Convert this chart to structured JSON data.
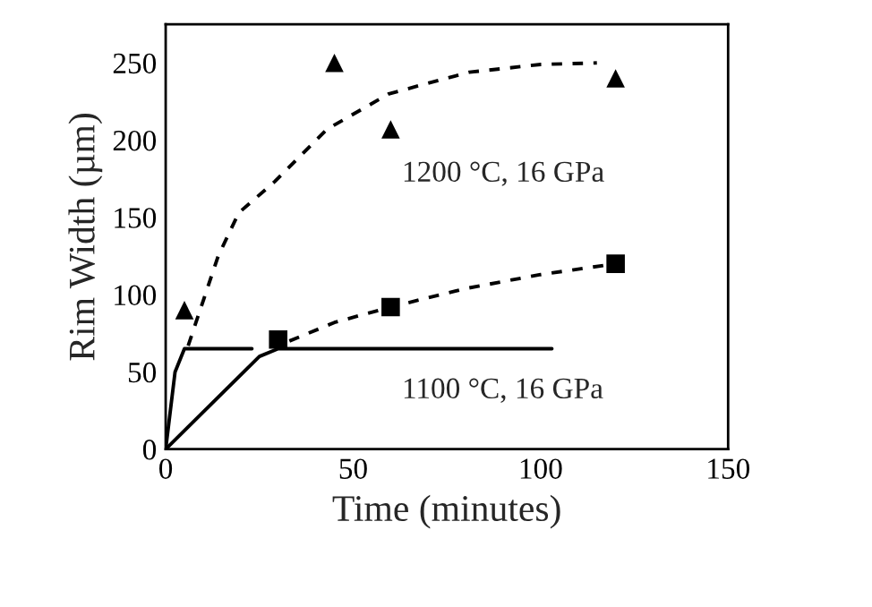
{
  "chart_data": {
    "type": "scatter",
    "xlabel": "Time (minutes)",
    "ylabel": "Rim Width (µm)",
    "xlim": [
      0,
      150
    ],
    "ylim": [
      0,
      275
    ],
    "xticks": [
      0,
      50,
      100,
      150
    ],
    "yticks": [
      0,
      50,
      100,
      150,
      200,
      250
    ],
    "grid": false,
    "annotations": [
      "1200 °C, 16 GPa",
      "1100 °C, 16 GPa"
    ],
    "series": [
      {
        "marker": "triangle",
        "color": "#000000",
        "x": [
          5,
          45,
          60,
          120
        ],
        "values": [
          90,
          250,
          207,
          240
        ]
      },
      {
        "marker": "square",
        "color": "#000000",
        "x": [
          30,
          60,
          120
        ],
        "values": [
          71,
          92,
          120
        ]
      },
      {
        "type": "line",
        "line_style": "dashed",
        "color": "#000000",
        "x": [
          6,
          10,
          14,
          19.5,
          29,
          43,
          59.5,
          81,
          100,
          115
        ],
        "values": [
          67,
          96,
          125,
          153,
          173,
          207,
          230,
          244,
          249,
          250
        ]
      },
      {
        "type": "line",
        "line_style": "dashed",
        "color": "#000000",
        "x": [
          33,
          45,
          60,
          80,
          100,
          120
        ],
        "values": [
          70,
          82,
          92,
          104,
          113,
          120
        ]
      },
      {
        "type": "line",
        "line_style": "solid",
        "color": "#000000",
        "x": [
          0,
          2.5,
          5,
          23
        ],
        "values": [
          0,
          50,
          65,
          65
        ]
      },
      {
        "type": "line",
        "line_style": "solid",
        "color": "#000000",
        "x": [
          0,
          25,
          30,
          103
        ],
        "values": [
          0,
          60,
          65,
          65
        ]
      }
    ]
  }
}
